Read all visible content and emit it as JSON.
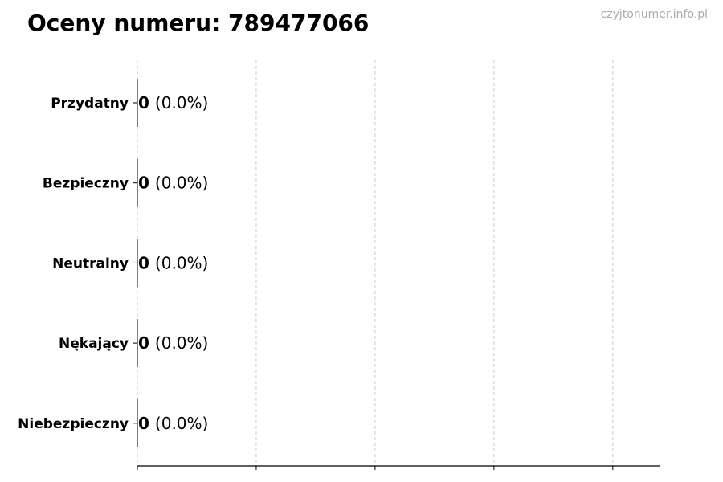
{
  "title": "Oceny numeru: 789477066",
  "watermark": "czyjtonumer.info.pl",
  "chart_data": {
    "type": "bar",
    "orientation": "horizontal",
    "title": "Oceny numeru: 789477066",
    "categories": [
      "Przydatny",
      "Bezpieczny",
      "Neutralny",
      "Nękający",
      "Niebezpieczny"
    ],
    "values": [
      0,
      0,
      0,
      0,
      0
    ],
    "percent_labels": [
      "(0.0%)",
      "(0.0%)",
      "(0.0%)",
      "(0.0%)",
      "(0.0%)"
    ],
    "xlim": [
      0,
      4.4
    ],
    "xticks": [
      0,
      1,
      2,
      3,
      4
    ],
    "xtick_labels_shown": false,
    "grid": "x-dashed",
    "xlabel": "",
    "ylabel": "",
    "colors": {
      "bar_edge": "#000000",
      "grid": "#cccccc",
      "axis": "#000000"
    }
  }
}
